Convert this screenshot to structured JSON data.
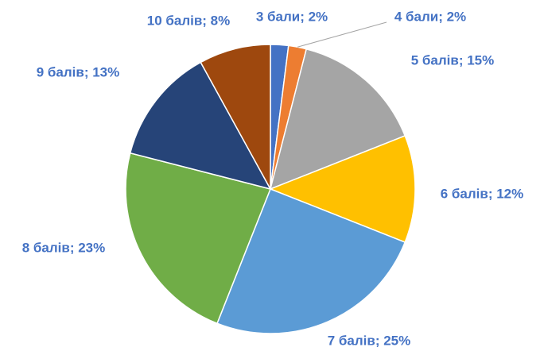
{
  "chart_data": {
    "type": "pie",
    "categories": [
      "3 бали",
      "4 бали",
      "5 балів",
      "6 балів",
      "7 балів",
      "8 балів",
      "9 балів",
      "10 балів"
    ],
    "values": [
      2,
      2,
      15,
      12,
      25,
      23,
      13,
      8
    ],
    "value_labels": [
      "3 бали; 2%",
      "4 бали; 2%",
      "5 балів; 15%",
      "6 балів; 12%",
      "7 балів; 25%",
      "8 балів; 23%",
      "9 балів; 13%",
      "10 балів; 8%"
    ],
    "colors": [
      "#4472c4",
      "#ed7d31",
      "#a5a5a5",
      "#ffc000",
      "#5b9bd5",
      "#70ad47",
      "#264478",
      "#9e480e"
    ]
  }
}
